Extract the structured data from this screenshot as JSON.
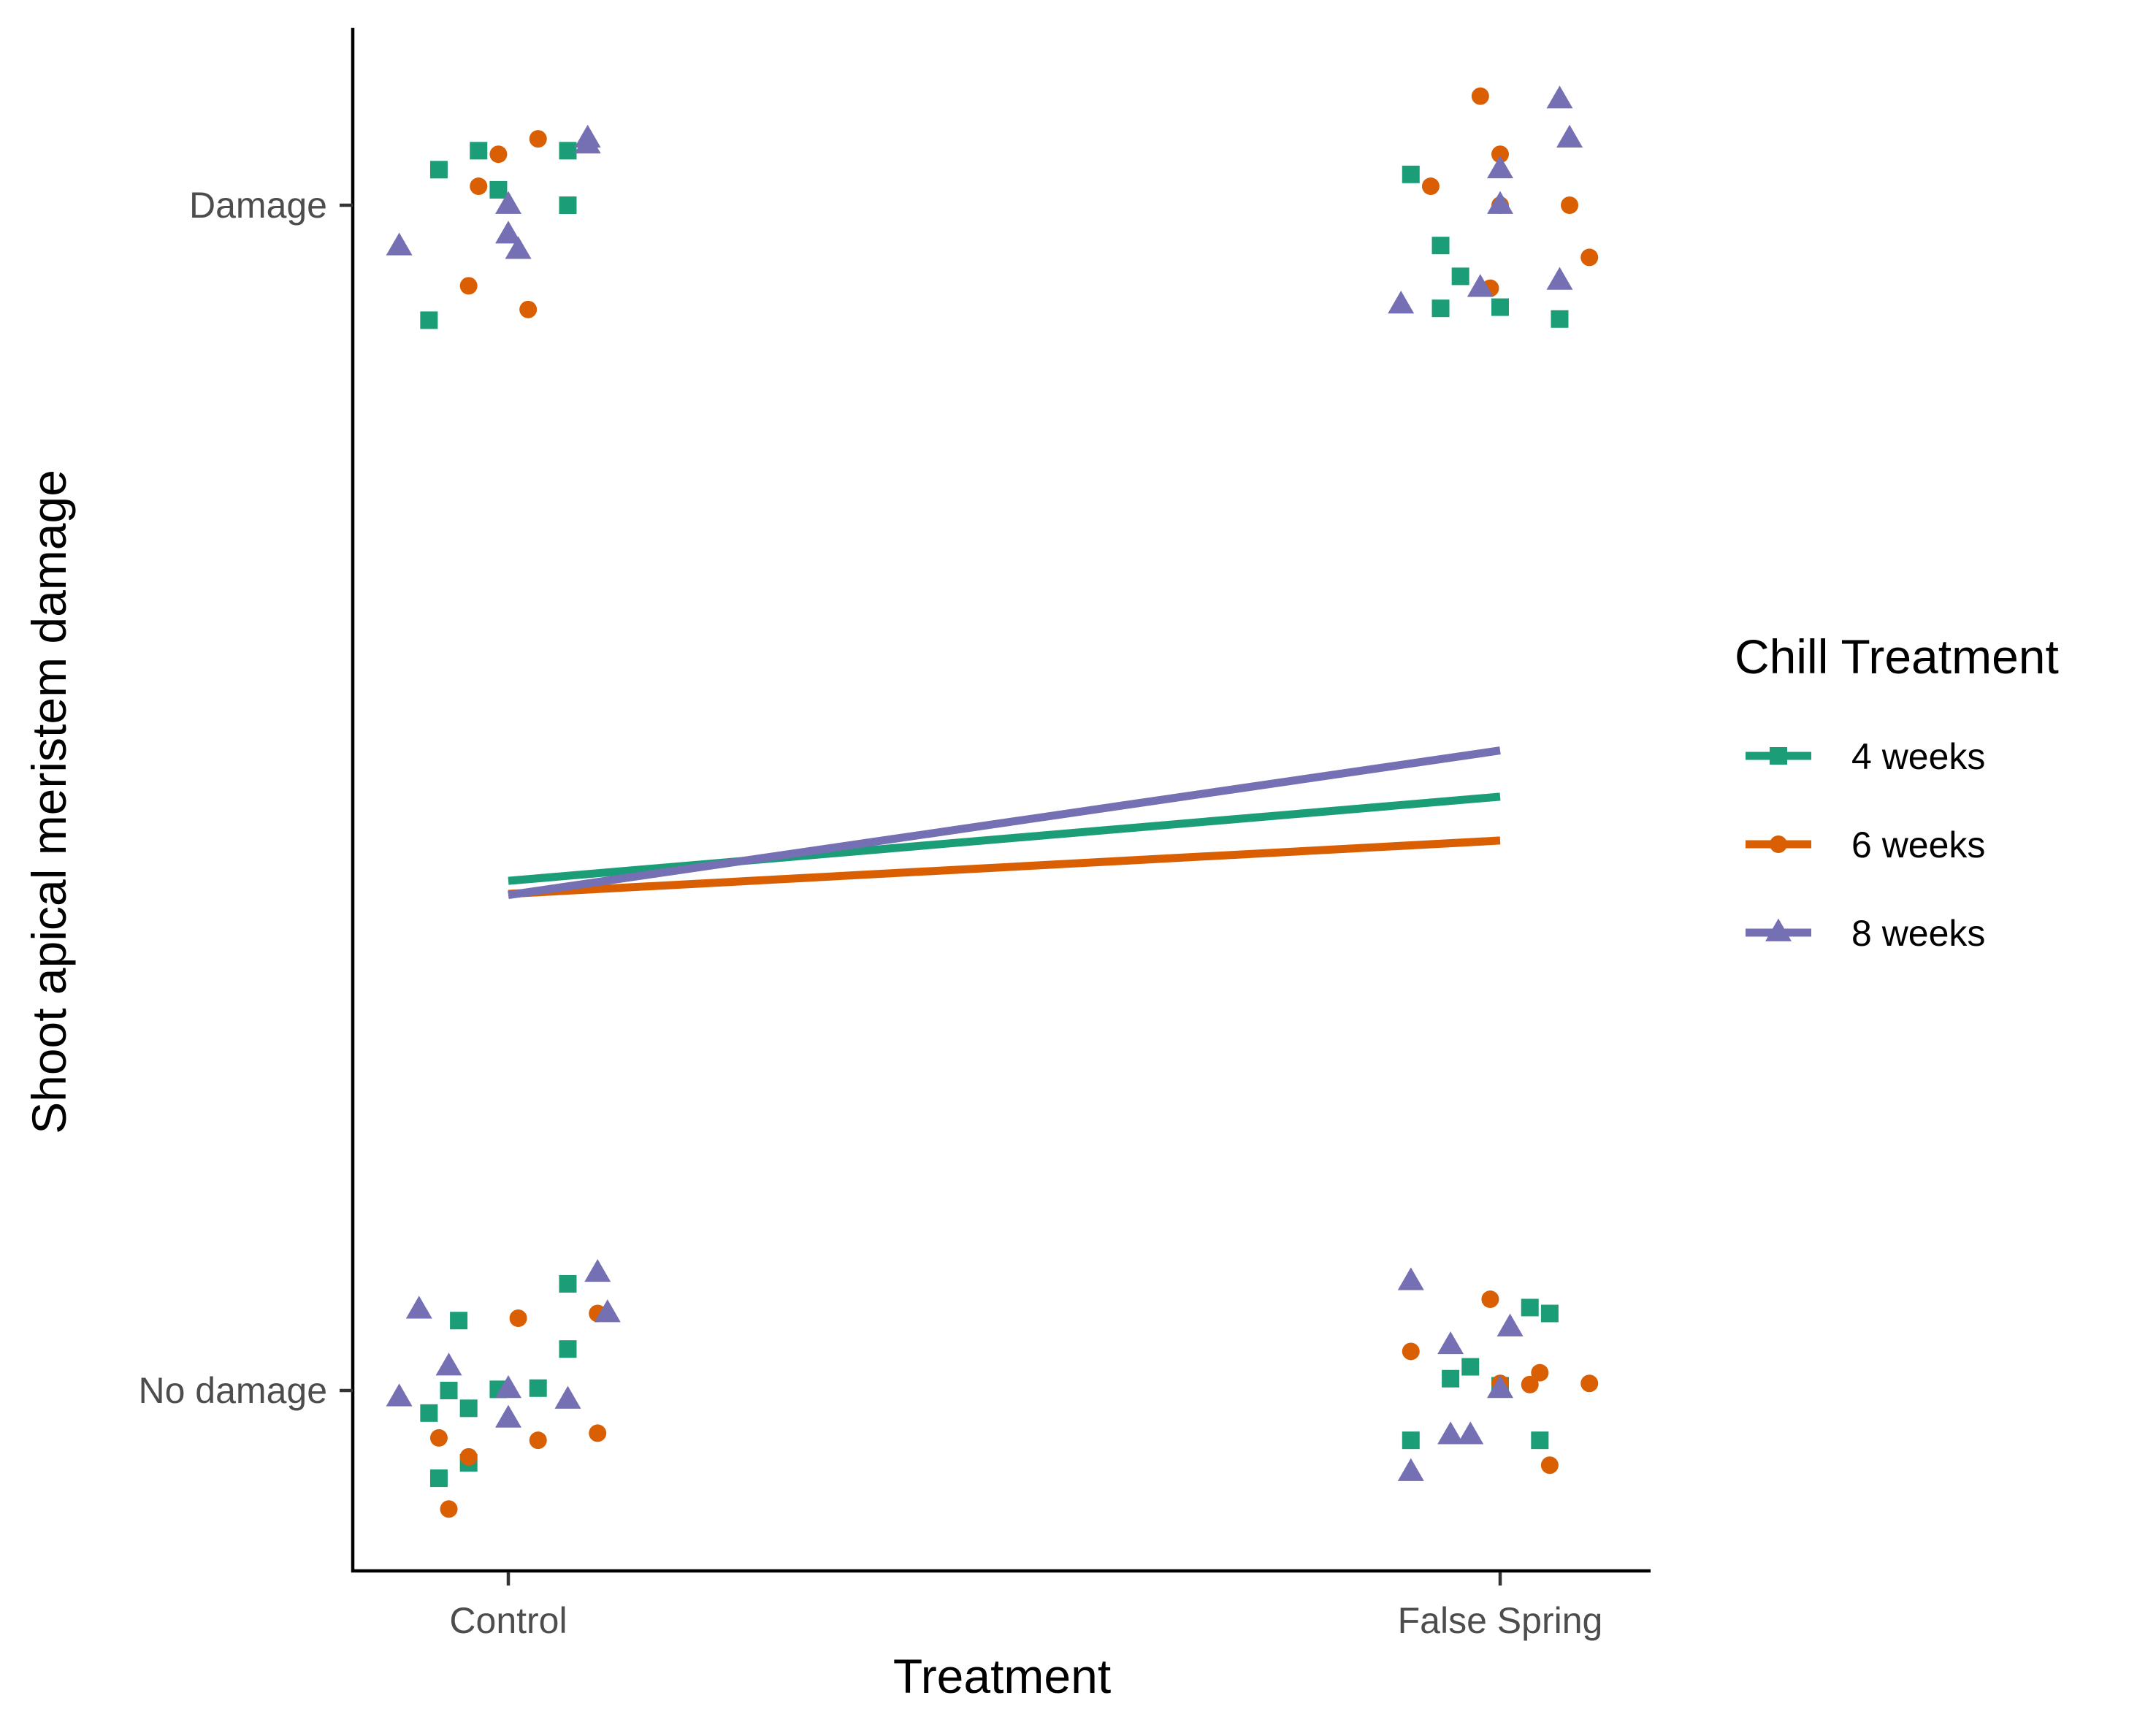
{
  "chart_data": {
    "type": "scatter",
    "title": "",
    "xlabel": "Treatment",
    "ylabel": "Shoot apical meristem damage",
    "x_categories": [
      "Control",
      "False Spring"
    ],
    "y_categories": [
      "No damage",
      "Damage"
    ],
    "ylim": [
      -0.155,
      1.148
    ],
    "grid": false,
    "legend": {
      "title": "Chill Treatment",
      "placement": "right"
    },
    "series": [
      {
        "name": "4 weeks",
        "color": "#1b9e77",
        "marker": "square",
        "fit": [
          0.43,
          0.501
        ],
        "points": [
          {
            "x": 0.93,
            "y": 1.03
          },
          {
            "x": 0.97,
            "y": 1.046
          },
          {
            "x": 0.99,
            "y": 1.013
          },
          {
            "x": 1.06,
            "y": 1.046
          },
          {
            "x": 1.06,
            "y": 1.0
          },
          {
            "x": 0.92,
            "y": 0.903
          },
          {
            "x": 0.93,
            "y": -0.074
          },
          {
            "x": 0.96,
            "y": -0.015
          },
          {
            "x": 0.99,
            "y": 0.001
          },
          {
            "x": 1.03,
            "y": 0.002
          },
          {
            "x": 1.06,
            "y": 0.035
          },
          {
            "x": 1.06,
            "y": 0.09
          },
          {
            "x": 0.95,
            "y": 0.059
          },
          {
            "x": 0.94,
            "y": 0.0
          },
          {
            "x": 0.92,
            "y": -0.019
          },
          {
            "x": 0.96,
            "y": -0.061
          },
          {
            "x": 1.91,
            "y": 1.026
          },
          {
            "x": 1.94,
            "y": 0.966
          },
          {
            "x": 1.96,
            "y": 0.94
          },
          {
            "x": 1.94,
            "y": 0.913
          },
          {
            "x": 2.0,
            "y": 0.914
          },
          {
            "x": 2.06,
            "y": 0.904
          },
          {
            "x": 1.91,
            "y": -0.042
          },
          {
            "x": 1.95,
            "y": 0.01
          },
          {
            "x": 1.97,
            "y": 0.02
          },
          {
            "x": 2.0,
            "y": 0.004
          },
          {
            "x": 2.03,
            "y": 0.07
          },
          {
            "x": 2.05,
            "y": 0.065
          },
          {
            "x": 2.04,
            "y": -0.042
          }
        ]
      },
      {
        "name": "6 weeks",
        "color": "#d95f02",
        "marker": "circle",
        "fit": [
          0.419,
          0.464
        ],
        "points": [
          {
            "x": 0.99,
            "y": 1.043
          },
          {
            "x": 1.03,
            "y": 1.056
          },
          {
            "x": 0.97,
            "y": 1.016
          },
          {
            "x": 0.96,
            "y": 0.932
          },
          {
            "x": 1.02,
            "y": 0.912
          },
          {
            "x": 1.01,
            "y": 0.061
          },
          {
            "x": 1.09,
            "y": 0.065
          },
          {
            "x": 0.93,
            "y": -0.04
          },
          {
            "x": 0.96,
            "y": -0.056
          },
          {
            "x": 1.03,
            "y": -0.042
          },
          {
            "x": 1.09,
            "y": -0.036
          },
          {
            "x": 0.94,
            "y": -0.1
          },
          {
            "x": 1.98,
            "y": 1.092
          },
          {
            "x": 2.0,
            "y": 1.043
          },
          {
            "x": 1.93,
            "y": 1.016
          },
          {
            "x": 2.0,
            "y": 1.0
          },
          {
            "x": 2.07,
            "y": 1.0
          },
          {
            "x": 2.09,
            "y": 0.956
          },
          {
            "x": 1.99,
            "y": 0.93
          },
          {
            "x": 1.99,
            "y": 0.077
          },
          {
            "x": 1.91,
            "y": 0.033
          },
          {
            "x": 2.0,
            "y": 0.006
          },
          {
            "x": 2.03,
            "y": 0.005
          },
          {
            "x": 2.04,
            "y": 0.015
          },
          {
            "x": 2.09,
            "y": 0.006
          },
          {
            "x": 2.05,
            "y": -0.063
          }
        ]
      },
      {
        "name": "8 weeks",
        "color": "#7570b3",
        "marker": "triangle",
        "fit": [
          0.418,
          0.54
        ],
        "points": [
          {
            "x": 1.08,
            "y": 1.056
          },
          {
            "x": 1.08,
            "y": 1.051
          },
          {
            "x": 1.0,
            "y": 1.0
          },
          {
            "x": 1.0,
            "y": 0.975
          },
          {
            "x": 1.01,
            "y": 0.962
          },
          {
            "x": 0.89,
            "y": 0.965
          },
          {
            "x": 1.09,
            "y": 0.099
          },
          {
            "x": 1.1,
            "y": 0.065
          },
          {
            "x": 0.91,
            "y": 0.068
          },
          {
            "x": 0.94,
            "y": 0.02
          },
          {
            "x": 0.89,
            "y": -0.006
          },
          {
            "x": 1.0,
            "y": 0.001
          },
          {
            "x": 1.06,
            "y": -0.008
          },
          {
            "x": 1.0,
            "y": -0.024
          },
          {
            "x": 2.06,
            "y": 1.089
          },
          {
            "x": 2.07,
            "y": 1.056
          },
          {
            "x": 2.0,
            "y": 1.03
          },
          {
            "x": 2.0,
            "y": 1.0
          },
          {
            "x": 1.98,
            "y": 0.93
          },
          {
            "x": 2.06,
            "y": 0.936
          },
          {
            "x": 1.9,
            "y": 0.916
          },
          {
            "x": 1.91,
            "y": 0.092
          },
          {
            "x": 1.95,
            "y": 0.038
          },
          {
            "x": 2.01,
            "y": 0.053
          },
          {
            "x": 2.0,
            "y": 0.001
          },
          {
            "x": 1.95,
            "y": -0.038
          },
          {
            "x": 1.97,
            "y": -0.038
          },
          {
            "x": 1.91,
            "y": -0.069
          }
        ]
      }
    ]
  }
}
